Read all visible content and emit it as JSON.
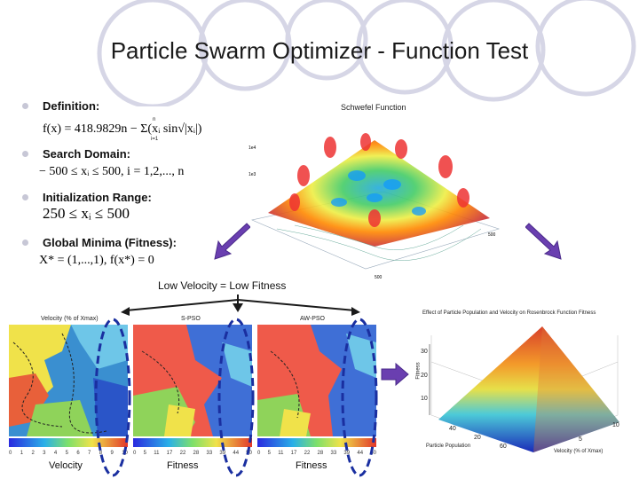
{
  "slide": {
    "title": "Particle Swarm Optimizer - Function Test",
    "bullets": [
      {
        "label": "Definition:",
        "formula": "f(x) = 418.9829n − Σ(xᵢ sin√|xᵢ|)",
        "sum_top": "n",
        "sum_bottom": "i=1"
      },
      {
        "label": "Search Domain:",
        "formula": "− 500 ≤ xᵢ ≤ 500, i = 1,2,..., n"
      },
      {
        "label": "Initialization Range:",
        "formula": "250 ≤ xᵢ ≤ 500"
      },
      {
        "label": "Global Minima (Fitness):",
        "formula": "X* = (1,...,1), f(x*) = 0"
      }
    ],
    "low_velocity_caption": "Low Velocity = Low Fitness",
    "schwefel_title": "Schwefel Function",
    "heatmaps": [
      {
        "title": "Velocity (% of Xmax)",
        "caption": "Velocity",
        "ticks": [
          "0",
          "1",
          "2",
          "3",
          "4",
          "5",
          "6",
          "7",
          "8",
          "9",
          "10"
        ]
      },
      {
        "title": "S-PSO",
        "caption": "Fitness",
        "ticks": [
          "0",
          "5",
          "11",
          "17",
          "22",
          "28",
          "33",
          "39",
          "44",
          "50"
        ]
      },
      {
        "title": "AW-PSO",
        "caption": "Fitness",
        "ticks": [
          "0",
          "5",
          "11",
          "17",
          "22",
          "28",
          "33",
          "39",
          "44",
          "50"
        ]
      }
    ],
    "rosenbrock": {
      "title": "Effect of Particle Population and Velocity on Rosenbrock Function Fitness",
      "zlabel": "Fitness",
      "xlabel": "Particle Population",
      "ylabel": "Velocity (% of Xmax)",
      "z_ticks": [
        "30",
        "20",
        "10"
      ],
      "x_ticks": [
        "40",
        "20",
        "60"
      ],
      "y_ticks": [
        "5",
        "10"
      ]
    },
    "colors": {
      "arrow": "#6a3fb0",
      "dash": "#1a2fa0",
      "decor": "#d6d6e6"
    }
  }
}
